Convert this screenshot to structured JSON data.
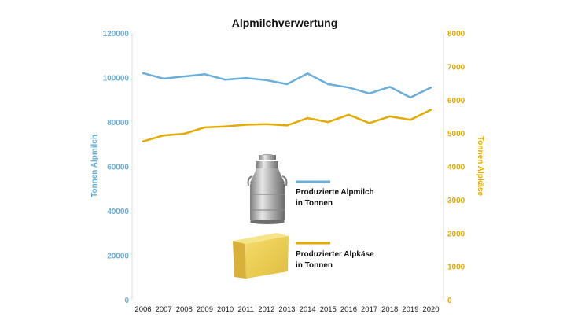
{
  "chart_data": {
    "type": "line",
    "title": "Alpmilchverwertung",
    "x": [
      "2006",
      "2007",
      "2008",
      "2009",
      "2010",
      "2011",
      "2012",
      "2013",
      "2014",
      "2015",
      "2016",
      "2017",
      "2018",
      "2019",
      "2020"
    ],
    "y_left": {
      "label": "Tonnen Alpmilch",
      "range": [
        0,
        120000
      ],
      "ticks": [
        "0",
        "20000",
        "40000",
        "60000",
        "80000",
        "100000",
        "120000"
      ]
    },
    "y_right": {
      "label": "Tonnen Alpkäse",
      "range": [
        0,
        8000
      ],
      "ticks": [
        "0",
        "1000",
        "2000",
        "3000",
        "4000",
        "5000",
        "6000",
        "7000",
        "8000"
      ]
    },
    "grid": false,
    "legend_position": "center",
    "series": [
      {
        "name_lines": [
          "Produzierte Alpmilch",
          "in Tonnen"
        ],
        "axis": "left",
        "color": "#6aaedb",
        "icon": "milk-can-icon",
        "values": [
          102000,
          99500,
          100500,
          101500,
          99000,
          99800,
          98800,
          97000,
          101800,
          97000,
          95500,
          92800,
          95800,
          91000,
          95500
        ]
      },
      {
        "name_lines": [
          "Produzierter Alpkäse",
          "in Tonnen"
        ],
        "axis": "right",
        "color": "#e3ab00",
        "icon": "cheese-wedge-icon",
        "values": [
          4750,
          4930,
          4980,
          5170,
          5200,
          5250,
          5270,
          5230,
          5450,
          5330,
          5550,
          5300,
          5500,
          5400,
          5700
        ]
      }
    ]
  }
}
